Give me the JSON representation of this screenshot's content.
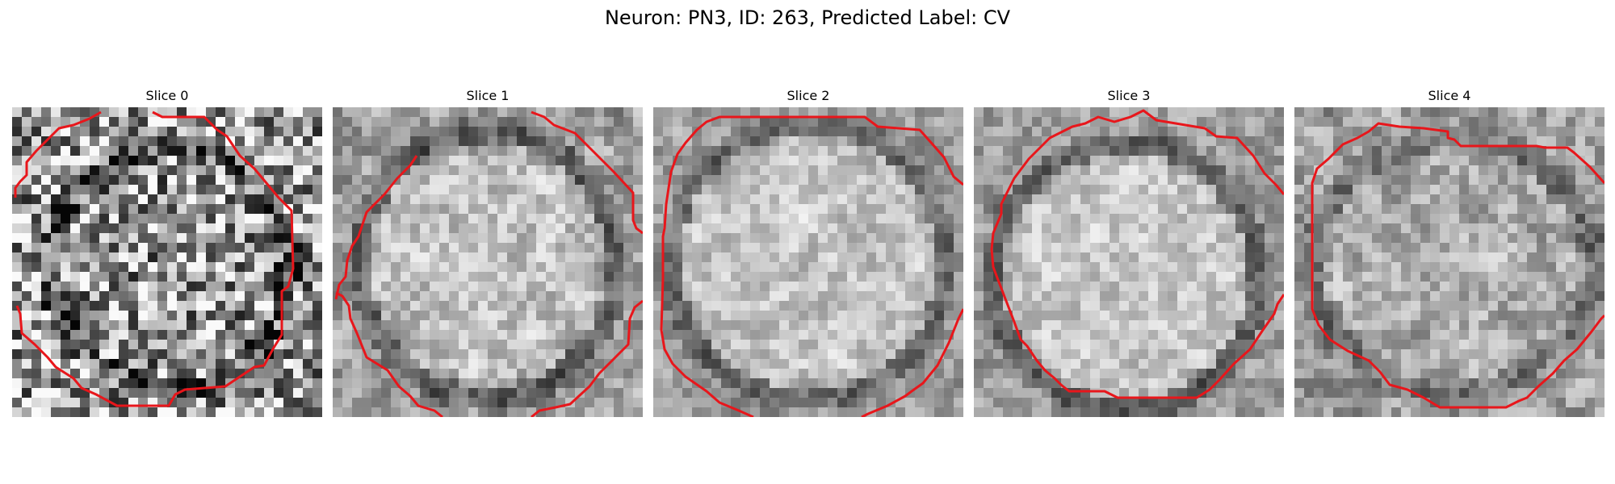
{
  "suptitle": "Neuron: PN3, ID: 263, Predicted Label: CV",
  "colors": {
    "contour": "#e8161b",
    "background": "#ffffff"
  },
  "image_style": "grayscale pixelated microscopy patches with red segmentation contour",
  "panels": [
    {
      "title": "Slice 0"
    },
    {
      "title": "Slice 1"
    },
    {
      "title": "Slice 2"
    },
    {
      "title": "Slice 3"
    },
    {
      "title": "Slice 4"
    }
  ]
}
